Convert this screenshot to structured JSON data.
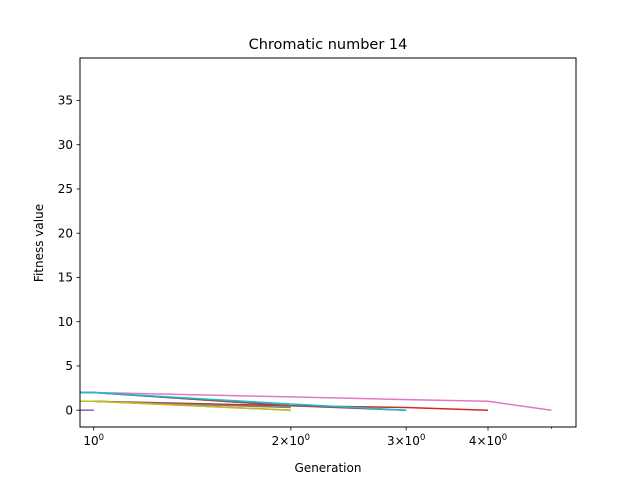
{
  "chart_data": {
    "type": "line",
    "title": "Chromatic number 14",
    "xlabel": "Generation",
    "ylabel": "Fitness value",
    "x_scale": "log",
    "xlim": [
      0.953,
      5.45
    ],
    "ylim": [
      -1.9,
      39.8
    ],
    "grid": false,
    "x_ticks": [
      {
        "value": 1,
        "base": "10",
        "exp": "0"
      },
      {
        "value": 2,
        "base": "2×10",
        "exp": "0"
      },
      {
        "value": 3,
        "base": "3×10",
        "exp": "0"
      },
      {
        "value": 4,
        "base": "4×10",
        "exp": "0"
      }
    ],
    "y_ticks": [
      0,
      5,
      10,
      15,
      20,
      25,
      30,
      35
    ],
    "series": [
      {
        "color": "#1f77b4",
        "x": [
          0.95,
          1,
          2
        ],
        "y": [
          2,
          2,
          0.5
        ]
      },
      {
        "color": "#ff7f0e",
        "x": [
          0.95,
          1,
          2
        ],
        "y": [
          1,
          1,
          0
        ]
      },
      {
        "color": "#2ca02c",
        "x": [
          0.95,
          1
        ],
        "y": [
          0,
          0
        ]
      },
      {
        "color": "#d62728",
        "x": [
          0.95,
          1,
          2,
          3,
          4
        ],
        "y": [
          1,
          1,
          0.5,
          0.3,
          0
        ]
      },
      {
        "color": "#9467bd",
        "x": [
          0.95,
          1
        ],
        "y": [
          0,
          0
        ]
      },
      {
        "color": "#8c564b",
        "x": [
          0.95,
          1,
          2,
          3
        ],
        "y": [
          2,
          2,
          0.5,
          0
        ]
      },
      {
        "color": "#e377c2",
        "x": [
          0.95,
          1,
          2,
          3,
          4,
          5
        ],
        "y": [
          2,
          2,
          1.5,
          1.2,
          1,
          0
        ]
      },
      {
        "color": "#7f7f7f",
        "x": [
          0.95,
          1,
          2
        ],
        "y": [
          1,
          1,
          0.3
        ]
      },
      {
        "color": "#bcbd22",
        "x": [
          0.95,
          1,
          2
        ],
        "y": [
          1,
          1,
          0
        ]
      },
      {
        "color": "#17becf",
        "x": [
          0.95,
          1,
          2,
          3
        ],
        "y": [
          2,
          2,
          0.7,
          0
        ]
      }
    ]
  }
}
